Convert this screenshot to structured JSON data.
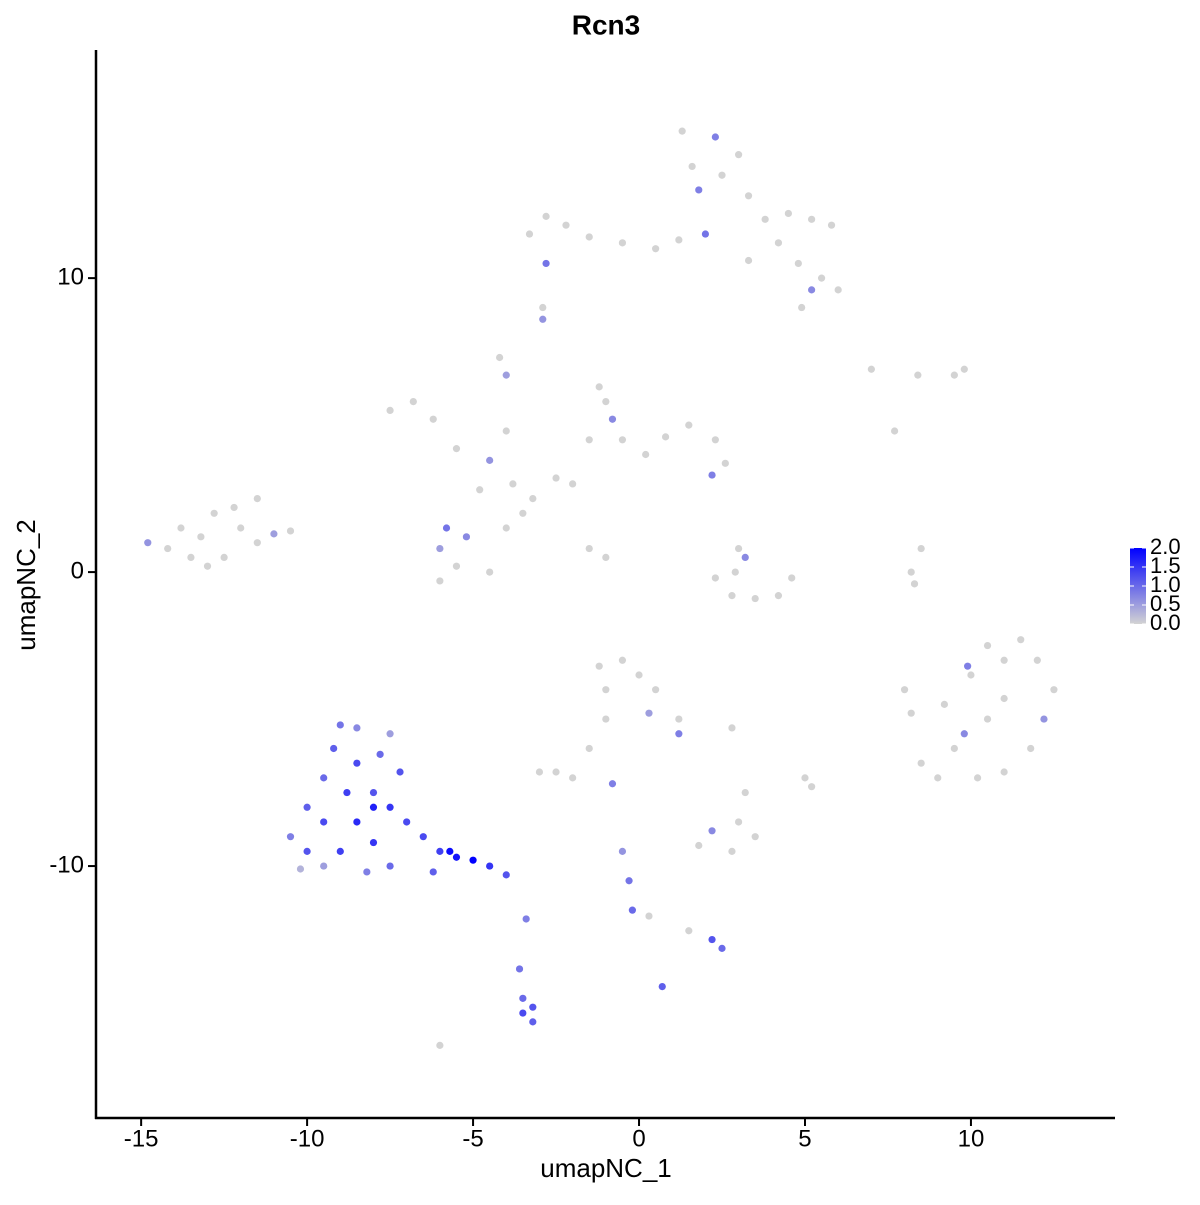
{
  "chart_data": {
    "type": "scatter",
    "title": "Rcn3",
    "x_label": "umapNC_1",
    "y_label": "umapNC_2",
    "xlim": [
      -16.36,
      14.34
    ],
    "ylim": [
      -18.57,
      17.76
    ],
    "xticks": [
      -15,
      -10,
      -5,
      0,
      5,
      10
    ],
    "yticks": [
      -10,
      0,
      10
    ],
    "colorlim": [
      0,
      2
    ],
    "colorticks": [
      {
        "value": 0,
        "label": "0.0"
      },
      {
        "value": 0.5,
        "label": "0.5"
      },
      {
        "value": 1,
        "label": "1.0"
      },
      {
        "value": 1.5,
        "label": "1.5"
      },
      {
        "value": 2,
        "label": "2.0"
      }
    ],
    "low_color": "#d3d3d3",
    "high_color": "#0000ff",
    "x": [
      1.3,
      2.3,
      1.6,
      2.5,
      3.0,
      3.3,
      3.8,
      4.5,
      5.2,
      5.8,
      4.2,
      4.8,
      5.5,
      6.0,
      4.9,
      1.2,
      2.0,
      3.3,
      5.2,
      1.8,
      -3.3,
      -2.8,
      -2.2,
      -1.5,
      -0.5,
      0.5,
      -2.8,
      -2.9,
      -2.9,
      -7.5,
      -6.8,
      -6.2,
      -5.5,
      -4.5,
      -4.0,
      -4.2,
      -4.0,
      -3.8,
      -3.2,
      -2.5,
      -2.0,
      -1.5,
      -1.0,
      -1.2,
      -0.8,
      -0.5,
      0.2,
      0.8,
      1.5,
      2.3,
      2.6,
      2.2,
      -5.8,
      -5.2,
      -6.0,
      -5.5,
      -6.0,
      -4.5,
      -4.0,
      -3.5,
      -4.8,
      -1.5,
      -1.0,
      -14.8,
      -14.2,
      -13.8,
      -13.2,
      -12.8,
      -12.5,
      -12.0,
      -11.5,
      -11.0,
      -11.5,
      -12.2,
      -13.5,
      -10.5,
      -13.0,
      2.3,
      2.8,
      3.5,
      4.2,
      4.6,
      3.0,
      3.2,
      2.9,
      8.2,
      8.5,
      8.3,
      7.0,
      8.4,
      9.5,
      9.8,
      7.7,
      8.0,
      8.2,
      8.5,
      9.0,
      9.5,
      9.8,
      10.0,
      10.5,
      11.0,
      11.5,
      12.0,
      12.5,
      12.2,
      11.8,
      11.0,
      10.2,
      10.5,
      11.0,
      9.9,
      9.2,
      -1.2,
      -0.5,
      0.0,
      0.5,
      -1.0,
      0.3,
      1.2,
      1.2,
      -1.0,
      -1.5,
      -2.5,
      -2.0,
      -3.0,
      2.8,
      5.0,
      5.2,
      1.8,
      2.2,
      2.8,
      3.0,
      3.5,
      3.2,
      -0.8,
      -0.5,
      -0.3,
      -0.2,
      0.3,
      1.5,
      2.2,
      2.5,
      0.7,
      -3.4,
      -3.6,
      -3.5,
      -3.2,
      -3.5,
      -3.2,
      -6.0,
      -9.0,
      -8.5,
      -7.5,
      -9.2,
      -8.5,
      -7.8,
      -7.2,
      -9.5,
      -8.8,
      -8.0,
      -7.5,
      -10.0,
      -9.5,
      -8.5,
      -7.0,
      -10.5,
      -10.0,
      -9.0,
      -8.0,
      -7.5,
      -6.5,
      -6.0,
      -5.5,
      -5.0,
      -4.5,
      -4.0,
      -9.5,
      -10.2,
      -8.2,
      -6.2,
      -5.7,
      -8.0
    ],
    "values": [
      15.0,
      14.8,
      13.8,
      13.5,
      14.2,
      12.8,
      12.0,
      12.2,
      12.0,
      11.8,
      11.2,
      10.5,
      10.0,
      9.6,
      9.0,
      11.3,
      11.5,
      10.6,
      9.6,
      13.0,
      11.5,
      12.1,
      11.8,
      11.4,
      11.2,
      11.0,
      10.5,
      9.0,
      8.6,
      5.5,
      5.8,
      5.2,
      4.2,
      3.8,
      4.8,
      7.3,
      6.7,
      3.0,
      2.5,
      3.2,
      3.0,
      4.5,
      5.8,
      6.3,
      5.2,
      4.5,
      4.0,
      4.6,
      5.0,
      4.5,
      3.7,
      3.3,
      1.5,
      1.2,
      0.8,
      0.2,
      -0.3,
      0.0,
      1.5,
      2.0,
      2.8,
      0.8,
      0.5,
      1.0,
      0.8,
      1.5,
      1.2,
      2.0,
      0.5,
      1.5,
      1.0,
      1.3,
      2.5,
      2.2,
      0.5,
      1.4,
      0.2,
      -0.2,
      -0.8,
      -0.9,
      -0.8,
      -0.2,
      0.8,
      0.5,
      0.0,
      0.0,
      0.8,
      -0.4,
      6.9,
      6.7,
      6.7,
      6.9,
      4.8,
      -4.0,
      -4.8,
      -6.5,
      -7.0,
      -6.0,
      -5.5,
      -3.5,
      -2.5,
      -3.0,
      -2.3,
      -3.0,
      -4.0,
      -5.0,
      -6.0,
      -6.8,
      -7.0,
      -5.0,
      -4.3,
      -3.2,
      -4.5,
      -3.2,
      -3.0,
      -3.5,
      -4.0,
      -4.0,
      -4.8,
      -5.0,
      -5.5,
      -5.0,
      -6.0,
      -6.8,
      -7.0,
      -6.8,
      -5.3,
      -7.0,
      -7.3,
      -9.3,
      -8.8,
      -9.5,
      -8.5,
      -9.0,
      -7.5,
      -7.2,
      -9.5,
      -10.5,
      -11.5,
      -11.7,
      -12.2,
      -12.5,
      -12.8,
      -14.1,
      -11.8,
      -13.5,
      -14.5,
      -14.8,
      -15.0,
      -15.3,
      -16.1,
      -5.2,
      -5.3,
      -5.5,
      -6.0,
      -6.5,
      -6.2,
      -6.8,
      -7.0,
      -7.5,
      -7.5,
      -8.0,
      -8.0,
      -8.5,
      -8.5,
      -8.5,
      -9.0,
      -9.5,
      -9.5,
      -9.2,
      -10.0,
      -9.0,
      -9.5,
      -9.7,
      -9.8,
      -10.0,
      -10.3,
      -10.0,
      -10.1,
      -10.2,
      -10.2,
      -9.5,
      -8.0
    ],
    "expression": [
      0,
      0.8,
      0,
      0,
      0,
      0,
      0,
      0,
      0,
      0,
      0,
      0,
      0,
      0,
      0,
      0,
      0.9,
      0,
      0.7,
      0.8,
      0,
      0,
      0,
      0,
      0,
      0,
      0.9,
      0,
      0.6,
      0,
      0,
      0,
      0,
      0.6,
      0,
      0,
      0.5,
      0,
      0,
      0,
      0,
      0,
      0,
      0,
      0.7,
      0,
      0,
      0,
      0,
      0,
      0,
      0.8,
      0.9,
      0.7,
      0.5,
      0,
      0,
      0,
      0,
      0,
      0,
      0,
      0,
      0.6,
      0,
      0,
      0,
      0,
      0,
      0,
      0,
      0.5,
      0,
      0,
      0,
      0,
      0,
      0,
      0,
      0,
      0,
      0,
      0,
      0.7,
      0,
      0,
      0,
      0,
      0,
      0,
      0,
      0,
      0,
      0,
      0,
      0,
      0,
      0,
      0.7,
      0,
      0,
      0,
      0,
      0,
      0,
      0.6,
      0,
      0,
      0,
      0,
      0,
      0.8,
      0,
      0,
      0,
      0,
      0,
      0,
      0.5,
      0,
      0.8,
      0,
      0,
      0,
      0,
      0,
      0,
      0,
      0,
      0,
      0.7,
      0,
      0,
      0,
      0,
      0.8,
      0.6,
      0.9,
      1.0,
      0,
      0,
      1.2,
      1.0,
      1.1,
      0.8,
      0.9,
      1.0,
      1.2,
      1.3,
      1.1,
      0,
      0.9,
      0.7,
      0.5,
      1.1,
      1.3,
      1.0,
      1.2,
      1.0,
      1.4,
      1.2,
      1.5,
      1.1,
      1.3,
      1.6,
      1.3,
      0.8,
      1.2,
      1.4,
      1.5,
      1.0,
      1.3,
      1.4,
      1.8,
      2.0,
      1.5,
      1.2,
      0.5,
      0.3,
      0.8,
      1.1,
      1.9,
      1.7
    ]
  }
}
